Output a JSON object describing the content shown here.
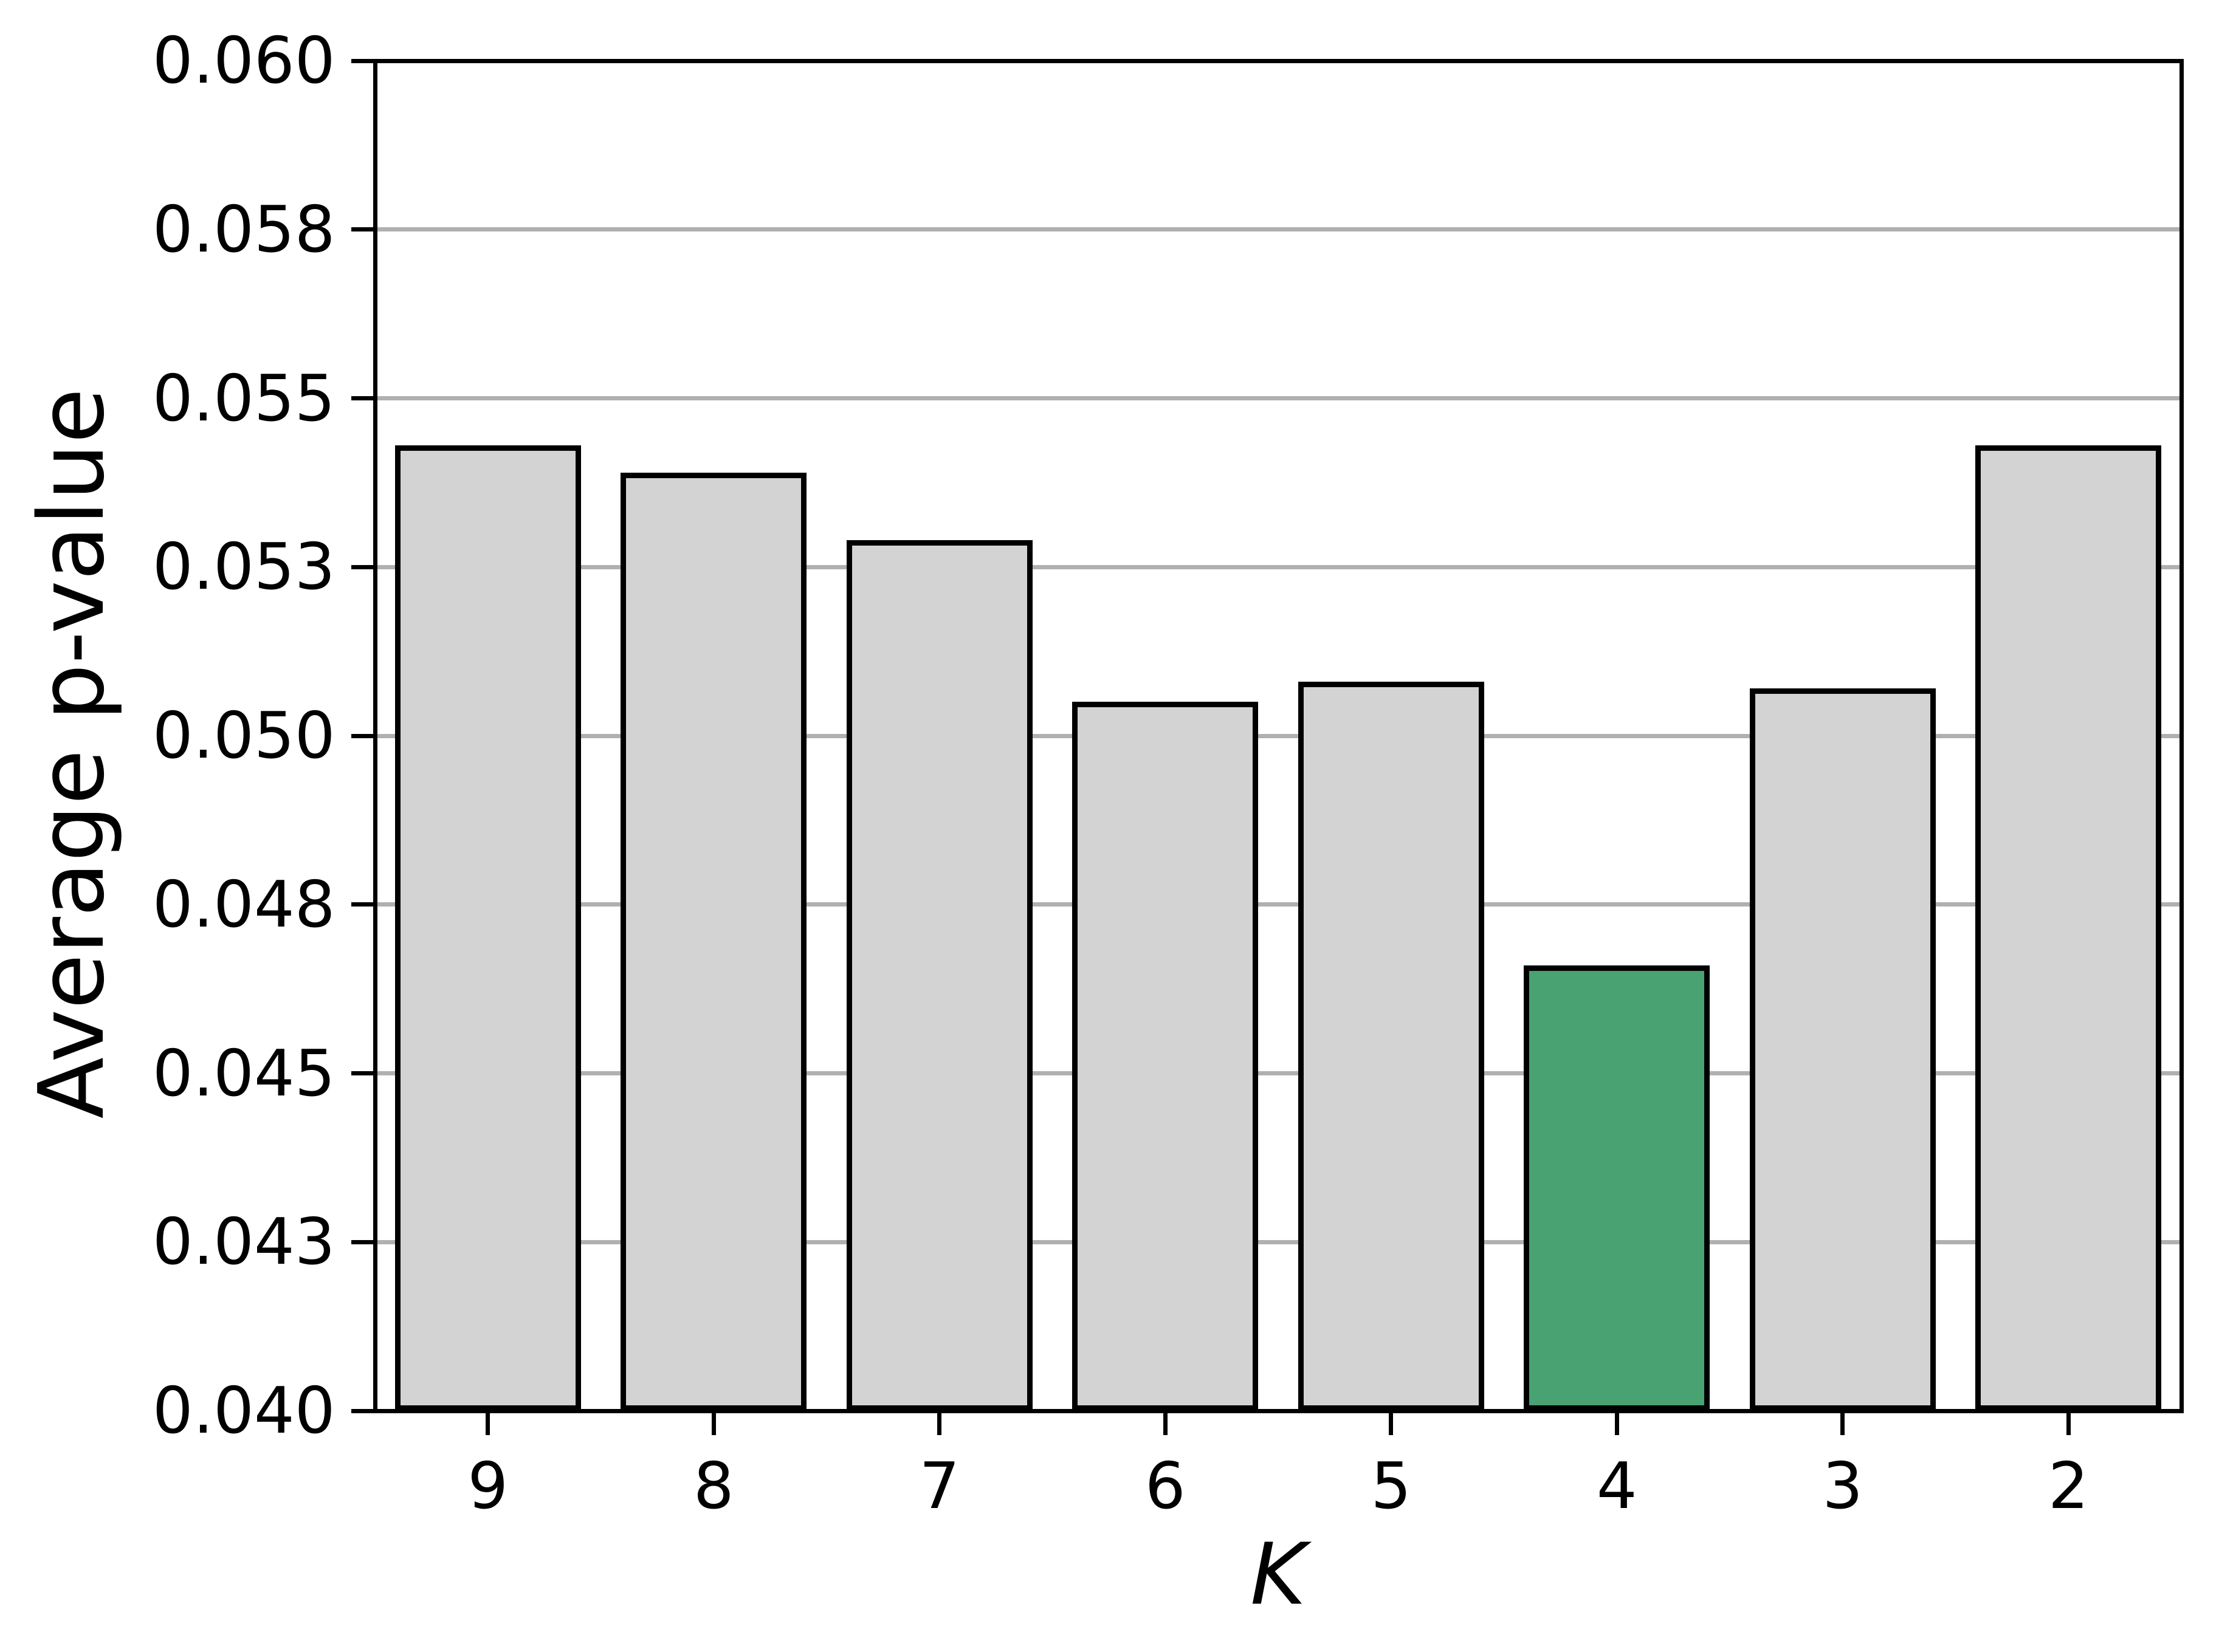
{
  "chart_data": {
    "type": "bar",
    "title": "",
    "xlabel": "K",
    "ylabel": "Average p-value",
    "categories": [
      "9",
      "8",
      "7",
      "6",
      "5",
      "4",
      "3",
      "2"
    ],
    "values": [
      0.0543,
      0.0539,
      0.0529,
      0.0505,
      0.0508,
      0.0466,
      0.0507,
      0.0543
    ],
    "highlight_index": 5,
    "highlighted_category": "4",
    "ylim": [
      0.04,
      0.06
    ],
    "ytick_values": [
      0.06,
      0.0575,
      0.055,
      0.0525,
      0.05,
      0.0475,
      0.045,
      0.0425,
      0.04
    ],
    "ytick_labels": [
      "0.060",
      "0.058",
      "0.055",
      "0.053",
      "0.050",
      "0.048",
      "0.045",
      "0.043",
      "0.040"
    ],
    "grid": true,
    "legend_position": "none",
    "colors": {
      "bar_fill": "#d3d3d3",
      "highlight_fill": "#48a271",
      "bar_edge": "#000000",
      "grid": "#b0b0b0",
      "spine": "#000000",
      "background": "#ffffff",
      "text": "#000000"
    }
  }
}
